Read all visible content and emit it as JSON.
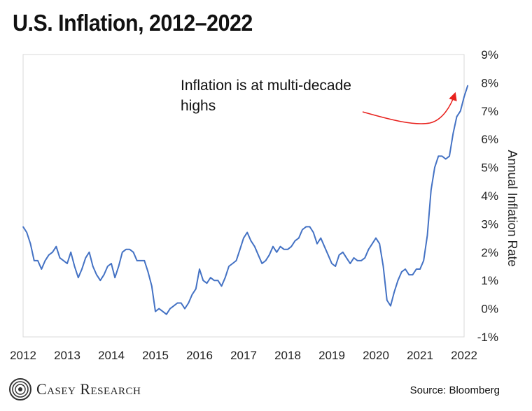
{
  "header": {
    "title": "U.S. Inflation, 2012–2022"
  },
  "footer": {
    "logo_text": "Casey Research",
    "source": "Source: Bloomberg"
  },
  "annotation": {
    "line1": "Inflation is at multi-decade",
    "line2": "highs"
  },
  "colors": {
    "line": "#4472C4",
    "arrow": "#E8221E",
    "grid": "#D9D9D9",
    "text": "#222222"
  },
  "chart_data": {
    "type": "line",
    "title": "U.S. Inflation, 2012–2022",
    "ylabel": "Annual Inflation Rate",
    "xlabel": "",
    "xlim": [
      2012,
      2022
    ],
    "ylim": [
      -1,
      9
    ],
    "y_axis_side": "right",
    "grid": false,
    "x_ticks": [
      "2012",
      "2013",
      "2014",
      "2015",
      "2016",
      "2017",
      "2018",
      "2019",
      "2020",
      "2021",
      "2022"
    ],
    "y_ticks": [
      "-1%",
      "0%",
      "1%",
      "2%",
      "3%",
      "4%",
      "5%",
      "6%",
      "7%",
      "8%",
      "9%"
    ],
    "series": [
      {
        "start_year": 2012,
        "frequency": "monthly",
        "values": [
          2.9,
          2.7,
          2.3,
          1.7,
          1.7,
          1.4,
          1.7,
          1.9,
          2.0,
          2.2,
          1.8,
          1.7,
          1.6,
          2.0,
          1.5,
          1.1,
          1.4,
          1.8,
          2.0,
          1.5,
          1.2,
          1.0,
          1.2,
          1.5,
          1.6,
          1.1,
          1.5,
          2.0,
          2.1,
          2.1,
          2.0,
          1.7,
          1.7,
          1.7,
          1.3,
          0.8,
          -0.1,
          0.0,
          -0.1,
          -0.2,
          0.0,
          0.1,
          0.2,
          0.2,
          0.0,
          0.2,
          0.5,
          0.7,
          1.4,
          1.0,
          0.9,
          1.1,
          1.0,
          1.0,
          0.8,
          1.1,
          1.5,
          1.6,
          1.7,
          2.1,
          2.5,
          2.7,
          2.4,
          2.2,
          1.9,
          1.6,
          1.7,
          1.9,
          2.2,
          2.0,
          2.2,
          2.1,
          2.1,
          2.2,
          2.4,
          2.5,
          2.8,
          2.9,
          2.9,
          2.7,
          2.3,
          2.5,
          2.2,
          1.9,
          1.6,
          1.5,
          1.9,
          2.0,
          1.8,
          1.6,
          1.8,
          1.7,
          1.7,
          1.8,
          2.1,
          2.3,
          2.5,
          2.3,
          1.5,
          0.3,
          0.1,
          0.6,
          1.0,
          1.3,
          1.4,
          1.2,
          1.2,
          1.4,
          1.4,
          1.7,
          2.6,
          4.2,
          5.0,
          5.4,
          5.4,
          5.3,
          5.4,
          6.2,
          6.8,
          7.0,
          7.5,
          7.9
        ]
      }
    ]
  }
}
